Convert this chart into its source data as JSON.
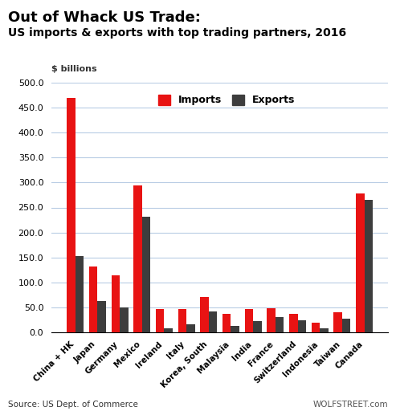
{
  "title1": "Out of Whack US Trade:",
  "title2": "US imports & exports with top trading partners, 2016",
  "ylabel": "$ billions",
  "categories": [
    "China + HK",
    "Japan",
    "Germany",
    "Mexico",
    "Ireland",
    "Italy",
    "Korea, South",
    "Malaysia",
    "India",
    "France",
    "Switzerland",
    "Indonesia",
    "Taiwan",
    "Canada"
  ],
  "imports": [
    470,
    132,
    114,
    294,
    46,
    46,
    70,
    37,
    46,
    47,
    37,
    19,
    39,
    278
  ],
  "exports": [
    152,
    63,
    50,
    231,
    8,
    16,
    42,
    12,
    22,
    30,
    24,
    7,
    26,
    266
  ],
  "import_color": "#e81313",
  "export_color": "#3d3d3d",
  "ylim": [
    0,
    500
  ],
  "yticks": [
    0.0,
    50.0,
    100.0,
    150.0,
    200.0,
    250.0,
    300.0,
    350.0,
    400.0,
    450.0,
    500.0
  ],
  "source_text": "Source: US Dept. of Commerce",
  "watermark": "WOLFSTREET.com",
  "legend_imports": "Imports",
  "legend_exports": "Exports",
  "background_color": "#ffffff",
  "grid_color": "#b8cce4"
}
